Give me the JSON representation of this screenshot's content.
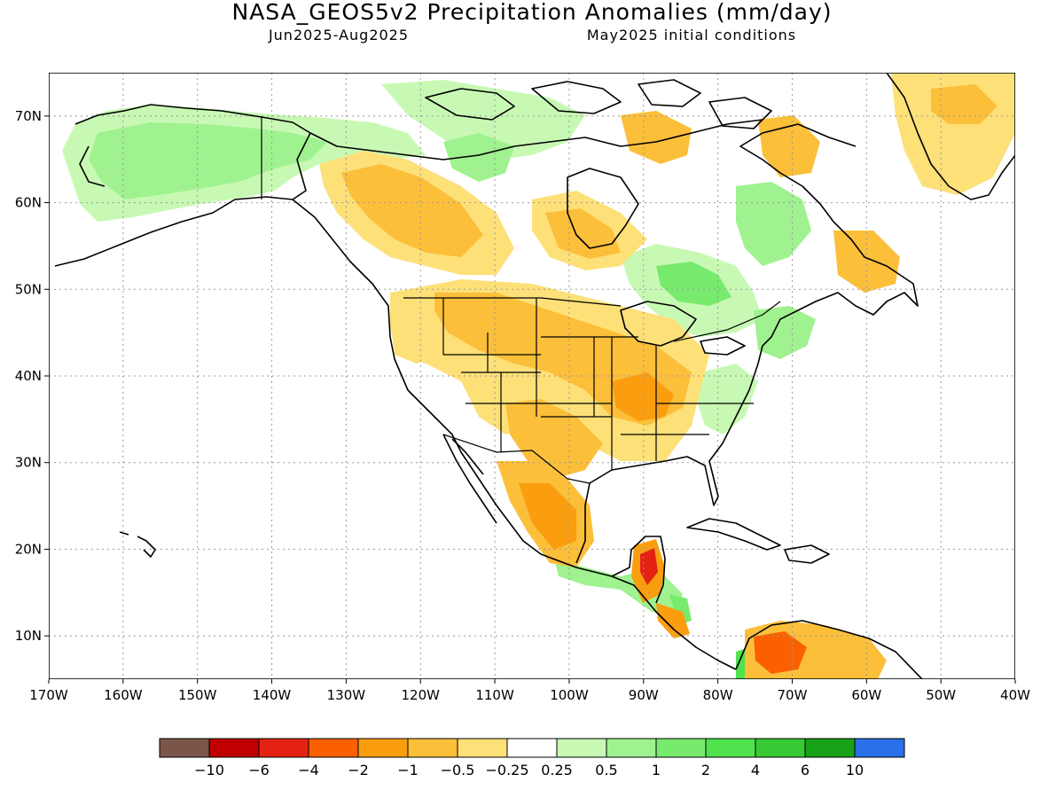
{
  "header": {
    "title": "NASA_GEOS5v2 Precipitation Anomalies (mm/day)",
    "period": "Jun2025-Aug2025",
    "init": "May2025 initial conditions"
  },
  "map": {
    "projection": "lat-lon",
    "lon_range": [
      -170,
      -40
    ],
    "lat_range": [
      5,
      75
    ],
    "lon_ticks": [
      "170W",
      "160W",
      "150W",
      "140W",
      "130W",
      "120W",
      "110W",
      "100W",
      "90W",
      "80W",
      "70W",
      "60W",
      "50W",
      "40W"
    ],
    "lat_ticks": [
      "10N",
      "20N",
      "30N",
      "40N",
      "50N",
      "60N",
      "70N"
    ],
    "grid": true
  },
  "colorbar": {
    "colors": [
      "#7a5548",
      "#c00000",
      "#e52212",
      "#fb6000",
      "#fa9e10",
      "#fbbf3a",
      "#fde078",
      "#ffffff",
      "#c8f9b4",
      "#9ff28f",
      "#78ea6e",
      "#50e34e",
      "#39c935",
      "#16a116",
      "#2a70e8"
    ],
    "labels": [
      "-10",
      "-6",
      "-4",
      "-2",
      "-1",
      "-0.5",
      "-0.25",
      "0.25",
      "0.5",
      "1",
      "2",
      "4",
      "6",
      "10"
    ]
  }
}
